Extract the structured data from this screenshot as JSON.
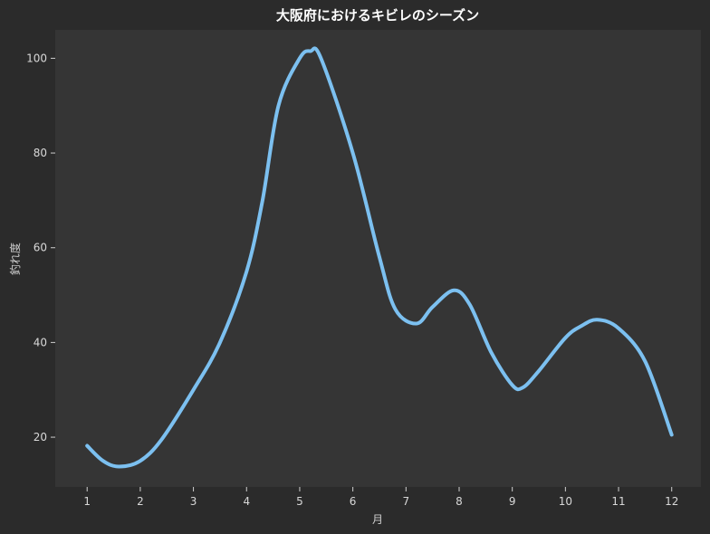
{
  "chart_data": {
    "type": "line",
    "title": "大阪府におけるキビレのシーズン",
    "xlabel": "月",
    "ylabel": "釣れ度",
    "x": [
      1,
      2,
      3,
      4,
      5,
      6,
      7,
      8,
      9,
      10,
      11,
      12
    ],
    "x_ticks": [
      "1",
      "2",
      "3",
      "4",
      "5",
      "6",
      "7",
      "8",
      "9",
      "10",
      "11",
      "12"
    ],
    "y_ticks": [
      "20",
      "40",
      "60",
      "80",
      "100"
    ],
    "xlim": [
      0.4,
      12.55
    ],
    "ylim": [
      9.5,
      106
    ],
    "grid": false,
    "series": [
      {
        "color": "#7cc0f0",
        "points": [
          [
            1,
            18.2
          ],
          [
            1.3,
            15
          ],
          [
            1.6,
            13.8
          ],
          [
            2,
            15
          ],
          [
            2.4,
            19.5
          ],
          [
            3,
            30
          ],
          [
            3.5,
            40
          ],
          [
            4,
            55
          ],
          [
            4.3,
            70
          ],
          [
            4.6,
            90
          ],
          [
            5,
            100
          ],
          [
            5.2,
            101.5
          ],
          [
            5.4,
            100
          ],
          [
            6,
            80
          ],
          [
            6.5,
            58
          ],
          [
            6.8,
            47
          ],
          [
            7.2,
            44
          ],
          [
            7.5,
            47.5
          ],
          [
            7.9,
            51
          ],
          [
            8.2,
            48
          ],
          [
            8.6,
            38
          ],
          [
            9,
            31
          ],
          [
            9.2,
            30.5
          ],
          [
            9.5,
            34
          ],
          [
            10,
            41
          ],
          [
            10.3,
            43.5
          ],
          [
            10.6,
            44.8
          ],
          [
            11,
            43
          ],
          [
            11.5,
            36
          ],
          [
            12,
            20.5
          ]
        ]
      }
    ],
    "colors": {
      "background": "#2b2b2b",
      "plot_background": "#353535",
      "line": "#7cc0f0"
    }
  }
}
